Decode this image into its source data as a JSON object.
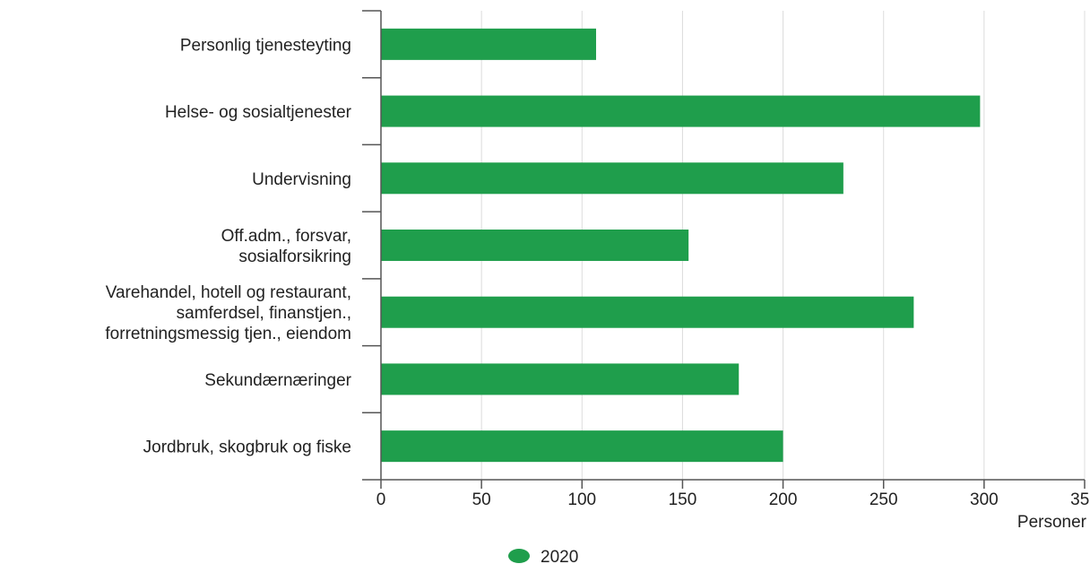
{
  "chart_data": {
    "type": "bar",
    "orientation": "horizontal",
    "categories": [
      [
        "Personlig tjenesteyting"
      ],
      [
        "Helse- og sosialtjenester"
      ],
      [
        "Undervisning"
      ],
      [
        "Off.adm., forsvar,",
        "sosialforsikring"
      ],
      [
        "Varehandel, hotell og restaurant,",
        "samferdsel, finanstjen.,",
        "forretningsmessig tjen., eiendom"
      ],
      [
        "Sekundærnæringer"
      ],
      [
        "Jordbruk, skogbruk og fiske"
      ]
    ],
    "series": [
      {
        "name": "2020",
        "color": "#1f9e4c",
        "values": [
          107,
          298,
          230,
          153,
          265,
          178,
          200
        ]
      }
    ],
    "xlabel": "Personer",
    "xlim": [
      0,
      350
    ],
    "xticks": [
      0,
      50,
      100,
      150,
      200,
      250,
      300,
      350
    ],
    "grid": true,
    "legend_placement": "bottom-center"
  }
}
